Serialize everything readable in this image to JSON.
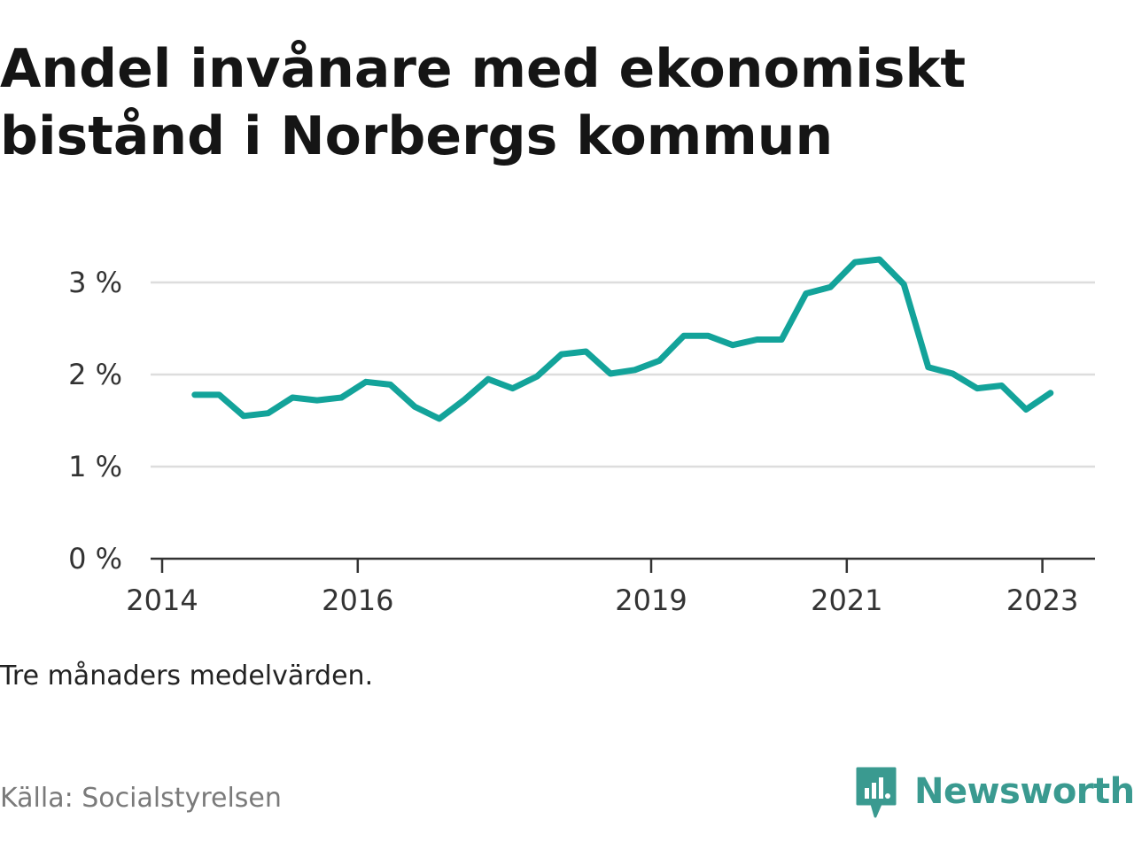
{
  "title": "Andel invånare med ekonomiskt bistånd i Norbergs kommun",
  "note": "Tre månaders medelvärden.",
  "source": "Källa: Socialstyrelsen",
  "brand": {
    "name": "Newsworthy",
    "icon": "newsworthy-logo-icon",
    "color": "#3a9a90"
  },
  "chart_data": {
    "type": "line",
    "title": "Andel invånare med ekonomiskt bistånd i Norbergs kommun",
    "xlabel": "",
    "ylabel": "",
    "x_ticks": [
      "2014",
      "2016",
      "2019",
      "2021",
      "2023"
    ],
    "y_ticks": [
      "0 %",
      "1 %",
      "2 %",
      "3 %"
    ],
    "ylim": [
      0,
      3.4
    ],
    "grid": true,
    "line_color": "#13a39a",
    "series": [
      {
        "x": [
          "2014-05",
          "2014-08",
          "2014-11",
          "2015-02",
          "2015-05",
          "2015-08",
          "2015-11",
          "2016-02",
          "2016-05",
          "2016-08",
          "2016-11",
          "2017-02",
          "2017-05",
          "2017-08",
          "2017-11",
          "2018-02",
          "2018-05",
          "2018-08",
          "2018-11",
          "2019-02",
          "2019-05",
          "2019-08",
          "2019-11",
          "2020-02",
          "2020-05",
          "2020-08",
          "2020-11",
          "2021-02",
          "2021-05",
          "2021-08",
          "2021-11",
          "2022-02",
          "2022-05",
          "2022-08",
          "2022-11",
          "2023-02"
        ],
        "values": [
          1.78,
          1.78,
          1.55,
          1.58,
          1.75,
          1.72,
          1.75,
          1.92,
          1.89,
          1.65,
          1.52,
          1.72,
          1.95,
          1.85,
          1.98,
          2.22,
          2.25,
          2.01,
          2.05,
          2.15,
          2.42,
          2.42,
          2.32,
          2.38,
          2.38,
          2.88,
          2.95,
          3.22,
          3.25,
          2.98,
          2.08,
          2.01,
          1.85,
          1.88,
          1.62,
          1.8
        ]
      }
    ]
  }
}
